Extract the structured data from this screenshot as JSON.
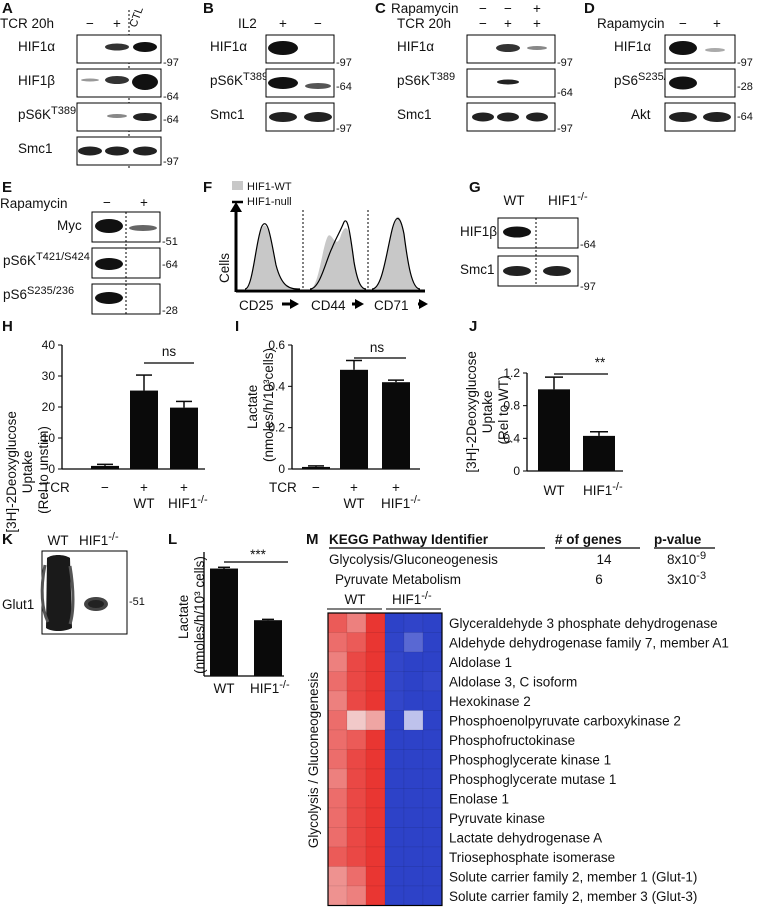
{
  "panels": {
    "A": {
      "letter": "A",
      "cond_label": "TCR 20h",
      "cond_values": [
        "−",
        "+"
      ],
      "ctl_label": "CTL",
      "blots": [
        "HIF1α",
        "HIF1β",
        "pS6K",
        "Smc1"
      ],
      "blot_sup": "T389",
      "markers": [
        "97",
        "64",
        "64",
        "97"
      ]
    },
    "B": {
      "letter": "B",
      "cond_label": "IL2",
      "cond_values": [
        "+",
        "−"
      ],
      "blots": [
        "HIF1α",
        "pS6K",
        "Smc1"
      ],
      "blot_sup": "T389",
      "markers": [
        "97",
        "64",
        "97"
      ]
    },
    "C": {
      "letter": "C",
      "rows": [
        {
          "label": "Rapamycin",
          "values": [
            "−",
            "−",
            "+"
          ]
        },
        {
          "label": "TCR 20h",
          "values": [
            "−",
            "+",
            "+"
          ]
        }
      ],
      "blots": [
        "HIF1α",
        "pS6K",
        "Smc1"
      ],
      "blot_sup": "T389",
      "markers": [
        "97",
        "64",
        "97"
      ]
    },
    "D": {
      "letter": "D",
      "cond_label": "Rapamycin",
      "cond_values": [
        "−",
        "+"
      ],
      "blots": [
        "HIF1α",
        "pS6",
        "Akt"
      ],
      "blot_sup": "S235/236",
      "markers": [
        "97",
        "28",
        "64"
      ]
    },
    "E": {
      "letter": "E",
      "cond_label": "Rapamycin",
      "cond_values": [
        "−",
        "+"
      ],
      "blots": [
        "Myc",
        "pS6K",
        "pS6"
      ],
      "sups": [
        "",
        "T421/S424",
        "S235/236"
      ],
      "markers": [
        "51",
        "64",
        "28"
      ]
    },
    "F": {
      "letter": "F",
      "legend": [
        "HIF1-WT",
        "HIF1-null"
      ],
      "ylabel": "Cells",
      "markers": [
        "CD25",
        "CD44",
        "CD71"
      ]
    },
    "G": {
      "letter": "G",
      "lanes": [
        "WT",
        "HIF1"
      ],
      "lane_sup": "-/-",
      "blots": [
        "HIF1β",
        "Smc1"
      ],
      "markers": [
        "64",
        "97"
      ]
    },
    "H": {
      "letter": "H",
      "ylabel_lines": [
        "[3H]-2Deoxyglucose",
        "Uptake",
        "(Rel to unstim)"
      ],
      "ns": "ns",
      "tcr_label": "TCR",
      "x_row1": [
        "−",
        "+",
        "+"
      ],
      "x_row2": [
        "",
        "WT",
        "HIF1"
      ],
      "sup": "-/-"
    },
    "I": {
      "letter": "I",
      "ylabel_lines": [
        "Lactate",
        "(nmoles/h/10³cells)"
      ],
      "ns": "ns",
      "tcr_label": "TCR",
      "x_row1": [
        "−",
        "+",
        "+"
      ],
      "x_row2": [
        "",
        "WT",
        "HIF1"
      ],
      "sup": "-/-"
    },
    "J": {
      "letter": "J",
      "ylabel_lines": [
        "[3H]-2Deoxyglucose",
        "Uptake",
        "(Rel to WT)"
      ],
      "sig": "**",
      "x_labels": [
        "WT",
        "HIF1"
      ],
      "sup": "-/-"
    },
    "K": {
      "letter": "K",
      "lanes": [
        "WT",
        "HIF1"
      ],
      "lane_sup": "-/-",
      "blot": "Glut1",
      "marker": "51"
    },
    "L": {
      "letter": "L",
      "ylabel_lines": [
        "Lactate",
        "(nmoles/h/10³ cells)"
      ],
      "sig": "***",
      "x_labels": [
        "WT",
        "HIF1"
      ],
      "sup": "-/-"
    },
    "M": {
      "letter": "M",
      "table_headers": [
        "KEGG Pathway Identifier",
        "# of genes",
        "p-value"
      ],
      "table_rows": [
        {
          "pathway": "Glycolysis/Gluconeogenesis",
          "genes": "14",
          "p_base": "8x10",
          "p_exp": "-9"
        },
        {
          "pathway": "Pyruvate Metabolism",
          "genes": "6",
          "p_base": "3x10",
          "p_exp": "-3"
        }
      ],
      "group_labels": [
        "WT",
        "HIF1"
      ],
      "group_sup": "-/-",
      "side_label": "Glycolysis / Gluconeogenesis",
      "genes": [
        "Glyceraldehyde 3 phosphate dehydrogenase",
        "Aldehyde dehydrogenase family 7, member A1",
        "Aldolase 1",
        "Aldolase 3, C isoform",
        "Hexokinase 2",
        "Phosphoenolpyruvate carboxykinase 2",
        "Phosphofructokinase",
        "Phosphoglycerate kinase 1",
        "Phosphoglycerate mutase 1",
        "Enolase 1",
        "Pyruvate kinase",
        "Lactate dehydrogenase A",
        "Triosephosphate isomerase",
        "Solute carrier family 2, member 1 (Glut-1)",
        "Solute carrier family 2, member 3 (Glut-3)"
      ]
    }
  },
  "colors": {
    "bar": "#0a0a0a",
    "heat_high": "#e8231f",
    "heat_low": "#2b40c8",
    "band": "#1a1a1a",
    "flow_fill": "#c8c8c8"
  },
  "chart_data": [
    {
      "panel": "H",
      "type": "bar",
      "categories": [
        "TCR −",
        "TCR + WT",
        "TCR + HIF1-/-"
      ],
      "values": [
        1,
        25.3,
        19.8
      ],
      "errors": [
        0.5,
        5,
        2
      ],
      "ylim": [
        0,
        40
      ],
      "yticks": [
        0,
        10,
        20,
        30,
        40
      ]
    },
    {
      "panel": "I",
      "type": "bar",
      "categories": [
        "TCR −",
        "TCR + WT",
        "TCR + HIF1-/-"
      ],
      "values": [
        0.01,
        0.48,
        0.42
      ],
      "errors": [
        0.005,
        0.045,
        0.01
      ],
      "ylim": [
        0,
        0.6
      ],
      "yticks": [
        0,
        0.2,
        0.4,
        0.6
      ]
    },
    {
      "panel": "J",
      "type": "bar",
      "categories": [
        "WT",
        "HIF1-/-"
      ],
      "values": [
        1.0,
        0.43
      ],
      "errors": [
        0.15,
        0.05
      ],
      "ylim": [
        0,
        1.2
      ],
      "yticks": [
        0,
        0.4,
        0.8,
        1.2
      ]
    },
    {
      "panel": "L",
      "type": "bar",
      "categories": [
        "WT",
        "HIF1-/-"
      ],
      "values": [
        0.52,
        0.27
      ],
      "errors": [
        0.006,
        0.004
      ],
      "ylim": [
        0,
        0.6
      ]
    },
    {
      "panel": "M",
      "type": "heatmap",
      "columns": [
        "WT",
        "WT",
        "WT",
        "HIF1-/-",
        "HIF1-/-",
        "HIF1-/-"
      ],
      "rows": 15,
      "values": [
        [
          0.85,
          0.75,
          0.95,
          0.05,
          0.08,
          0.05
        ],
        [
          0.8,
          0.85,
          0.95,
          0.08,
          0.25,
          0.05
        ],
        [
          0.75,
          0.9,
          0.95,
          0.1,
          0.05,
          0.05
        ],
        [
          0.8,
          0.9,
          0.95,
          0.1,
          0.05,
          0.1
        ],
        [
          0.75,
          0.9,
          0.95,
          0.1,
          0.05,
          0.05
        ],
        [
          0.8,
          0.55,
          0.65,
          0.05,
          0.45,
          0.05
        ],
        [
          0.8,
          0.85,
          0.95,
          0.05,
          0.05,
          0.05
        ],
        [
          0.8,
          0.9,
          0.95,
          0.05,
          0.05,
          0.05
        ],
        [
          0.75,
          0.9,
          0.95,
          0.05,
          0.05,
          0.05
        ],
        [
          0.8,
          0.9,
          0.95,
          0.05,
          0.05,
          0.05
        ],
        [
          0.8,
          0.9,
          0.95,
          0.05,
          0.05,
          0.05
        ],
        [
          0.8,
          0.9,
          0.95,
          0.05,
          0.05,
          0.05
        ],
        [
          0.85,
          0.9,
          0.95,
          0.05,
          0.05,
          0.05
        ],
        [
          0.7,
          0.8,
          0.95,
          0.05,
          0.05,
          0.05
        ],
        [
          0.7,
          0.75,
          0.95,
          0.05,
          0.05,
          0.05
        ]
      ]
    }
  ]
}
